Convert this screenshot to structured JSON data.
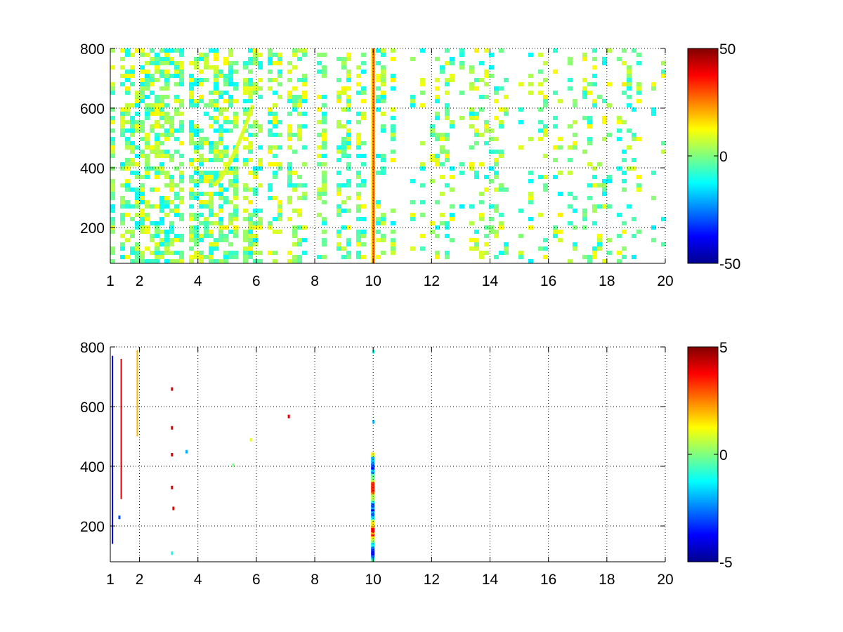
{
  "chart_data": [
    {
      "type": "heatmap",
      "title": "",
      "xlabel": "",
      "ylabel": "",
      "x_ticks": [
        1,
        2,
        4,
        6,
        8,
        10,
        12,
        14,
        16,
        18,
        20
      ],
      "y_ticks": [
        200,
        400,
        600,
        800
      ],
      "xlim": [
        1,
        20
      ],
      "ylim": [
        80,
        800
      ],
      "grid": true,
      "colormap": "jet",
      "colorbar": {
        "ticks": [
          50,
          0,
          -50
        ],
        "clim": [
          -50,
          50
        ]
      },
      "dominant_column_x": 10,
      "value_range_cells": [
        -20,
        20
      ],
      "features": [
        {
          "x": 10,
          "y_range": [
            80,
            800
          ],
          "value": 15,
          "note_shape": "bright vertical stripe"
        },
        {
          "x_range": [
            4.5,
            5.8
          ],
          "y_range": [
            350,
            610
          ],
          "value": 8,
          "note_shape": "curved arc"
        }
      ]
    },
    {
      "type": "heatmap",
      "title": "",
      "xlabel": "",
      "ylabel": "",
      "x_ticks": [
        1,
        2,
        4,
        6,
        8,
        10,
        12,
        14,
        16,
        18,
        20
      ],
      "y_ticks": [
        200,
        400,
        600,
        800
      ],
      "xlim": [
        1,
        20
      ],
      "ylim": [
        80,
        800
      ],
      "grid": true,
      "colormap": "jet",
      "colorbar": {
        "ticks": [
          5,
          0,
          -5
        ],
        "clim": [
          -5,
          5
        ]
      },
      "features": [
        {
          "x": 10,
          "y_range": [
            80,
            440
          ],
          "value_range": [
            -4,
            3
          ],
          "note_shape": "dense vertical stripe"
        },
        {
          "x": 1.05,
          "y_range": [
            140,
            770
          ],
          "value_range": [
            -5,
            5
          ],
          "note_shape": "thin vertical line"
        },
        {
          "x": 1.9,
          "y_range": [
            500,
            790
          ],
          "value": 2,
          "note_shape": "thin vertical line"
        },
        {
          "x": 3.1,
          "y_range": [
            110,
            660
          ],
          "value": 4,
          "note_shape": "sparse points"
        }
      ]
    }
  ]
}
